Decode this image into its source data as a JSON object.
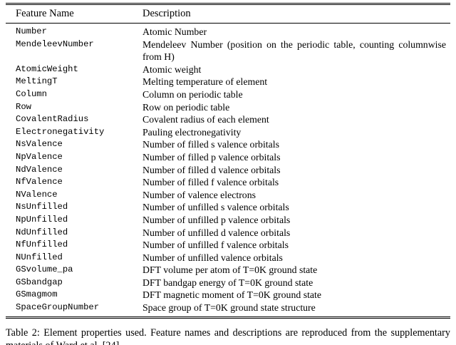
{
  "colors": {
    "background": "#ffffff",
    "text": "#000000",
    "rule": "#000000"
  },
  "table": {
    "headers": [
      "Feature Name",
      "Description"
    ],
    "rows": [
      {
        "feature": "Number",
        "description": "Atomic Number"
      },
      {
        "feature": "MendeleevNumber",
        "description": "Mendeleev Number (position on the periodic table, counting columnwise from H)"
      },
      {
        "feature": "AtomicWeight",
        "description": "Atomic weight"
      },
      {
        "feature": "MeltingT",
        "description": "Melting temperature of element"
      },
      {
        "feature": "Column",
        "description": "Column on periodic table"
      },
      {
        "feature": "Row",
        "description": "Row on periodic table"
      },
      {
        "feature": "CovalentRadius",
        "description": "Covalent radius of each element"
      },
      {
        "feature": "Electronegativity",
        "description": "Pauling electronegativity"
      },
      {
        "feature": "NsValence",
        "description": "Number of filled s valence orbitals"
      },
      {
        "feature": "NpValence",
        "description": "Number of filled p valence orbitals"
      },
      {
        "feature": "NdValence",
        "description": "Number of filled d valence orbitals"
      },
      {
        "feature": "NfValence",
        "description": "Number of filled f valence orbitals"
      },
      {
        "feature": "NValence",
        "description": "Number of valence electrons"
      },
      {
        "feature": "NsUnfilled",
        "description": "Number of unfilled s valence orbitals"
      },
      {
        "feature": "NpUnfilled",
        "description": "Number of unfilled p valence orbitals"
      },
      {
        "feature": "NdUnfilled",
        "description": "Number of unfilled d valence orbitals"
      },
      {
        "feature": "NfUnfilled",
        "description": "Number of unfilled f valence orbitals"
      },
      {
        "feature": "NUnfilled",
        "description": "Number of unfilled valence orbitals"
      },
      {
        "feature": "GSvolume_pa",
        "description": "DFT volume per atom of T=0K ground state"
      },
      {
        "feature": "GSbandgap",
        "description": "DFT bandgap energy of T=0K ground state"
      },
      {
        "feature": "GSmagmom",
        "description": "DFT magnetic moment of T=0K ground state"
      },
      {
        "feature": "SpaceGroupNumber",
        "description": "Space group of T=0K ground state structure"
      }
    ]
  },
  "caption": {
    "text": "Table 2: Element properties used. Feature names and descriptions are reproduced from the supplementary materials of Ward et al. [24]."
  }
}
